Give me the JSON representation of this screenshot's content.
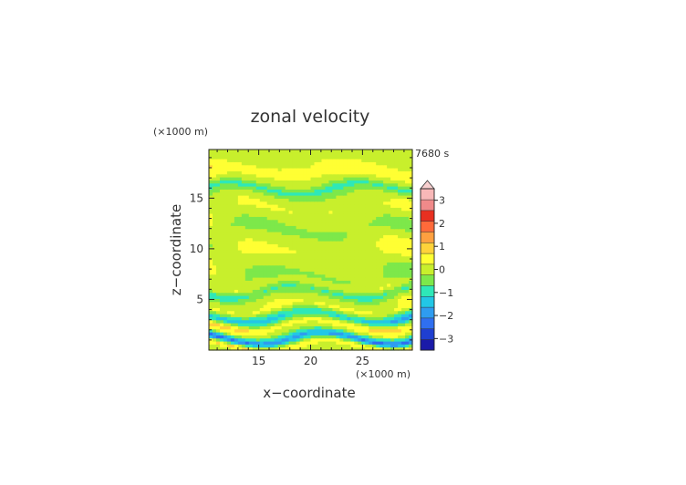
{
  "chart_data": {
    "type": "heatmap",
    "title": "zonal velocity",
    "time_label": "7680 s",
    "xlabel": "x−coordinate",
    "ylabel": "z−coordinate",
    "x_unit": "(×1000 m)",
    "y_unit": "(×1000 m)",
    "xlim": [
      10.2,
      29.8
    ],
    "ylim": [
      0,
      19.8
    ],
    "xticks": [
      15,
      20,
      25
    ],
    "xtick_labels": [
      "15",
      "20",
      "25"
    ],
    "yticks": [
      5,
      10,
      15
    ],
    "ytick_labels": [
      "5",
      "10",
      "15"
    ],
    "colorbar": {
      "levels": [
        -3.5,
        -3,
        -2.5,
        -2,
        -1.5,
        -1,
        -0.5,
        0,
        0.5,
        1,
        1.5,
        2,
        2.5,
        3,
        3.5
      ],
      "colors": [
        "#1a1aa8",
        "#1f3fd0",
        "#2f6ff0",
        "#2f9cf0",
        "#22c7e6",
        "#2ee8b8",
        "#7de84a",
        "#c8ef2c",
        "#ffff33",
        "#ffd23a",
        "#ffa040",
        "#ff6a3a",
        "#e83020",
        "#f08a8a",
        "#f8b8b8"
      ],
      "tick_values": [
        3,
        2,
        1,
        0,
        -1,
        -2,
        -3
      ],
      "tick_labels": [
        "3",
        "2",
        "1",
        "0",
        "−1",
        "−2",
        "−3"
      ],
      "extend_max": true
    },
    "bands": [
      {
        "z": 19.4,
        "u": 0.15
      },
      {
        "z": 18.6,
        "u": 0.55
      },
      {
        "z": 17.7,
        "u": 0.9
      },
      {
        "z": 16.7,
        "u": 0.25
      },
      {
        "z": 16.0,
        "u": -0.85
      },
      {
        "z": 15.0,
        "u": 0.2
      },
      {
        "z": 14.0,
        "u": 0.55
      },
      {
        "z": 13.0,
        "u": 0.3
      },
      {
        "z": 12.0,
        "u": -0.1
      },
      {
        "z": 10.8,
        "u": 0.2
      },
      {
        "z": 9.5,
        "u": 0.55
      },
      {
        "z": 8.3,
        "u": 0.25
      },
      {
        "z": 7.3,
        "u": -0.1
      },
      {
        "z": 6.4,
        "u": 0.3
      },
      {
        "z": 5.8,
        "u": -0.7
      },
      {
        "z": 5.0,
        "u": 0.3
      },
      {
        "z": 4.2,
        "u": 0.7
      },
      {
        "z": 3.3,
        "u": -1.3
      },
      {
        "z": 2.5,
        "u": 0.9
      },
      {
        "z": 1.9,
        "u": 0.2
      },
      {
        "z": 1.2,
        "u": -2.2
      },
      {
        "z": 0.5,
        "u": 1.1
      },
      {
        "z": 0.0,
        "u": 0.4
      }
    ]
  }
}
